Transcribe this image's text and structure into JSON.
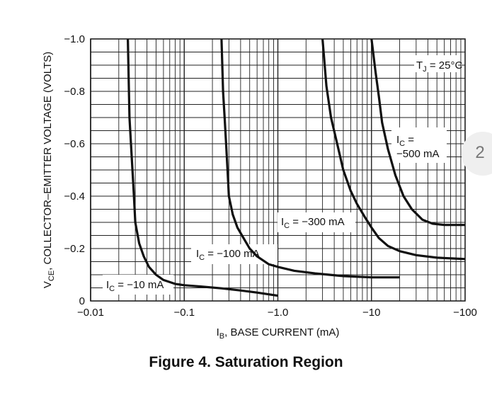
{
  "caption": "Figure 4. Saturation Region",
  "page_tab": "2",
  "chart_data": {
    "type": "line",
    "x_scale": "log",
    "xlim": [
      -0.01,
      -100
    ],
    "ylim": [
      0,
      -1.0
    ],
    "grid": true,
    "xlabel": {
      "main": "I",
      "sub": "B",
      "rest": ", BASE CURRENT (mA)"
    },
    "ylabel": {
      "main": "V",
      "sub": "CE",
      "rest": ", COLLECTOR–EMITTER VOLTAGE (VOLTS)"
    },
    "x_ticks": [
      {
        "value": -0.01,
        "label": "−0.01"
      },
      {
        "value": -0.1,
        "label": "−0.1"
      },
      {
        "value": -1.0,
        "label": "−1.0"
      },
      {
        "value": -10,
        "label": "−10"
      },
      {
        "value": -100,
        "label": "−100"
      }
    ],
    "y_ticks": [
      {
        "value": 0,
        "label": "0"
      },
      {
        "value": -0.2,
        "label": "−0.2"
      },
      {
        "value": -0.4,
        "label": "−0.4"
      },
      {
        "value": -0.6,
        "label": "−0.6"
      },
      {
        "value": -0.8,
        "label": "−0.8"
      },
      {
        "value": -1.0,
        "label": "−1.0"
      }
    ],
    "condition_label": {
      "main": "T",
      "sub": "J",
      "rest": " = 25°C"
    },
    "series": [
      {
        "label": {
          "main": "I",
          "sub": "C",
          "rest": " = −10 mA"
        },
        "x": [
          -0.025,
          -0.026,
          -0.027,
          -0.028,
          -0.029,
          -0.03,
          -0.033,
          -0.037,
          -0.042,
          -0.05,
          -0.06,
          -0.08,
          -0.1,
          -0.15,
          -0.25,
          -0.4,
          -0.6,
          -1.0
        ],
        "y": [
          -1.0,
          -0.7,
          -0.6,
          -0.5,
          -0.4,
          -0.3,
          -0.22,
          -0.17,
          -0.13,
          -0.1,
          -0.08,
          -0.065,
          -0.06,
          -0.055,
          -0.048,
          -0.04,
          -0.032,
          -0.02
        ]
      },
      {
        "label": {
          "main": "I",
          "sub": "C",
          "rest": " = −100 mA"
        },
        "x": [
          -0.25,
          -0.26,
          -0.27,
          -0.28,
          -0.29,
          -0.3,
          -0.33,
          -0.37,
          -0.43,
          -0.5,
          -0.6,
          -0.8,
          -1.0,
          -1.5,
          -2.5,
          -5.0,
          -10,
          -20
        ],
        "y": [
          -1.0,
          -0.8,
          -0.7,
          -0.6,
          -0.5,
          -0.4,
          -0.33,
          -0.28,
          -0.24,
          -0.2,
          -0.17,
          -0.14,
          -0.13,
          -0.115,
          -0.105,
          -0.095,
          -0.09,
          -0.09
        ]
      },
      {
        "label": {
          "main": "I",
          "sub": "C",
          "rest": " = −300 mA"
        },
        "x": [
          -3.0,
          -3.3,
          -3.7,
          -4.3,
          -5.0,
          -6.0,
          -7.0,
          -8.5,
          -10,
          -12,
          -15,
          -20,
          -30,
          -50,
          -100
        ],
        "y": [
          -1.0,
          -0.82,
          -0.7,
          -0.6,
          -0.5,
          -0.42,
          -0.37,
          -0.32,
          -0.28,
          -0.24,
          -0.21,
          -0.19,
          -0.175,
          -0.165,
          -0.16
        ]
      },
      {
        "label": {
          "main": "I",
          "sub": "C",
          "rest": " = −500 mA"
        },
        "x": [
          -10,
          -11,
          -12,
          -13,
          -15,
          -18,
          -22,
          -27,
          -35,
          -45,
          -60,
          -100
        ],
        "y": [
          -1.0,
          -0.88,
          -0.78,
          -0.68,
          -0.58,
          -0.48,
          -0.4,
          -0.35,
          -0.31,
          -0.295,
          -0.29,
          -0.29
        ]
      }
    ]
  }
}
